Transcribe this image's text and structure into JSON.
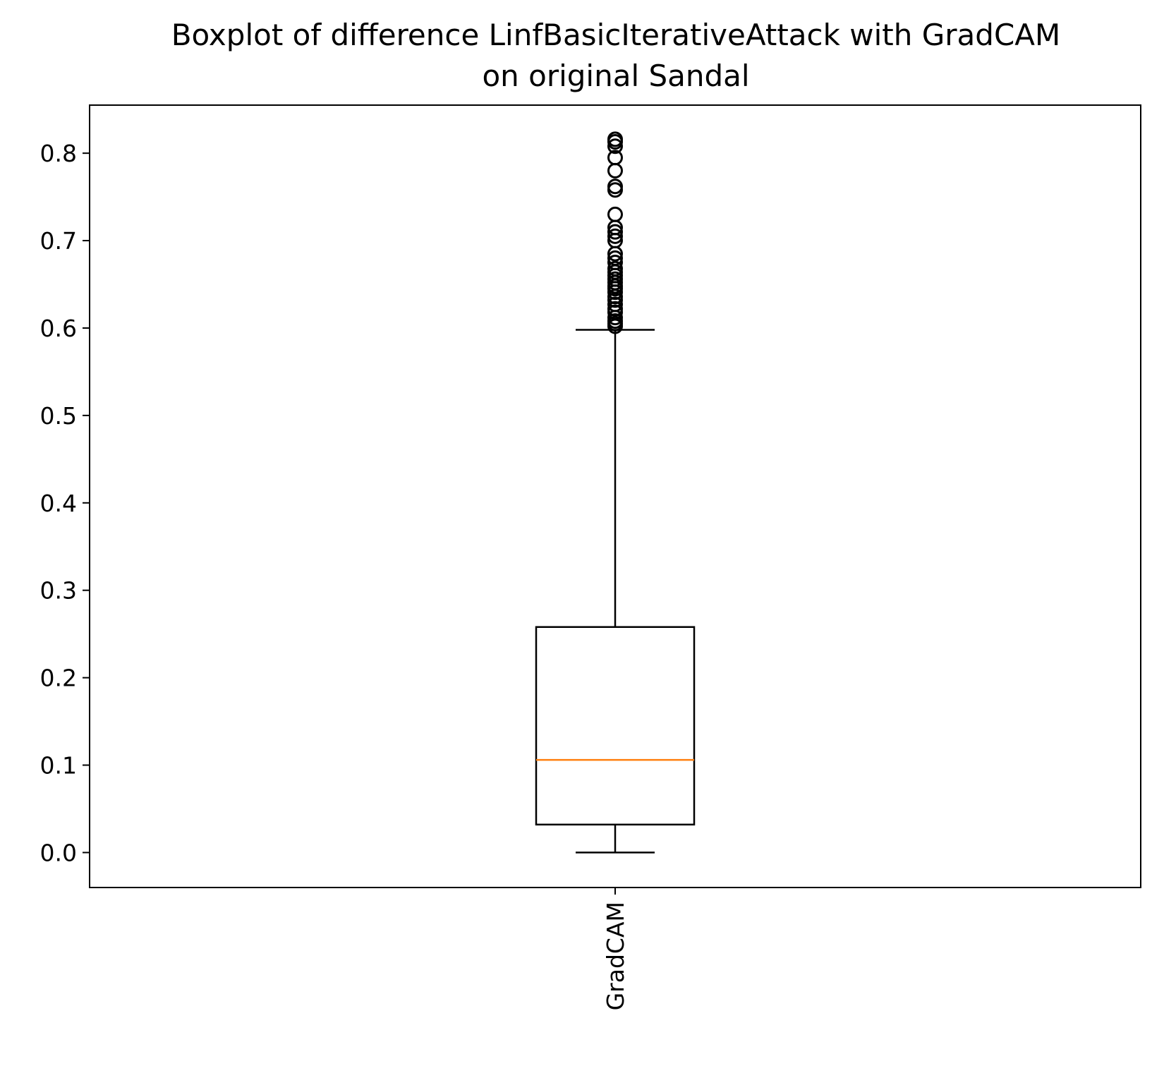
{
  "chart_data": {
    "type": "boxplot",
    "title": "Boxplot of difference LinfBasicIterativeAttack with GradCAM\non original Sandal",
    "xlabel": "",
    "ylabel": "",
    "ylim": [
      -0.04,
      0.855
    ],
    "yticks": [
      0.0,
      0.1,
      0.2,
      0.3,
      0.4,
      0.5,
      0.6,
      0.7,
      0.8
    ],
    "ytick_labels": [
      "0.0",
      "0.1",
      "0.2",
      "0.3",
      "0.4",
      "0.5",
      "0.6",
      "0.7",
      "0.8"
    ],
    "categories": [
      "GradCAM"
    ],
    "grid": false,
    "colors": {
      "box": "#000000",
      "median": "#ff7f0e",
      "flier": "#000000"
    },
    "boxes": [
      {
        "label": "GradCAM",
        "whisker_low": 0.0,
        "q1": 0.032,
        "median": 0.106,
        "q3": 0.258,
        "whisker_high": 0.598,
        "outliers": [
          0.602,
          0.605,
          0.608,
          0.612,
          0.618,
          0.622,
          0.627,
          0.632,
          0.636,
          0.641,
          0.645,
          0.648,
          0.652,
          0.656,
          0.66,
          0.664,
          0.668,
          0.675,
          0.68,
          0.685,
          0.7,
          0.705,
          0.71,
          0.715,
          0.73,
          0.758,
          0.762,
          0.78,
          0.795,
          0.808,
          0.813,
          0.816
        ]
      }
    ]
  }
}
